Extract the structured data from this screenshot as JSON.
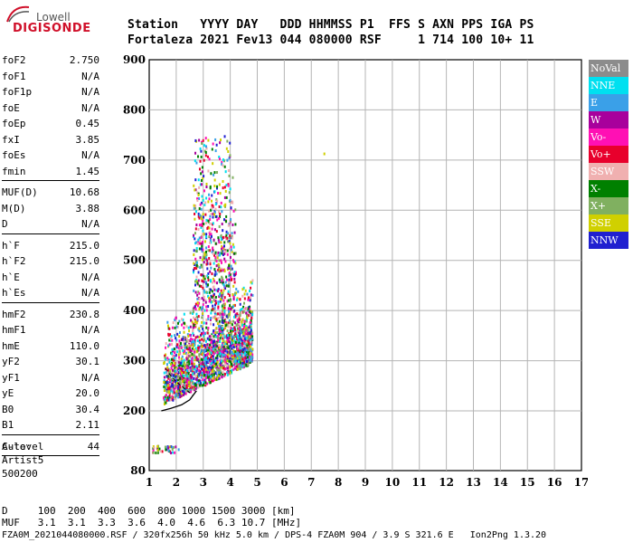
{
  "logo": {
    "line1": "Lowell",
    "line2": "DIGISONDE"
  },
  "header": {
    "labels": "Station   YYYY DAY   DDD HHMMSS P1  FFS S AXN PPS IGA PS",
    "values": "Fortaleza 2021 Fev13 044 080000 RSF     1 714 100 10+ 11"
  },
  "params": {
    "group1": [
      {
        "name": "foF2",
        "value": "2.750"
      },
      {
        "name": "foF1",
        "value": "N/A"
      },
      {
        "name": "foF1p",
        "value": "N/A"
      },
      {
        "name": "foE",
        "value": "N/A"
      },
      {
        "name": "foEp",
        "value": "0.45"
      },
      {
        "name": "fxI",
        "value": "3.85"
      },
      {
        "name": "foEs",
        "value": "N/A"
      },
      {
        "name": "fmin",
        "value": "1.45"
      }
    ],
    "group2": [
      {
        "name": "MUF(D)",
        "value": "10.68"
      },
      {
        "name": "M(D)",
        "value": "3.88"
      },
      {
        "name": "D",
        "value": "N/A"
      }
    ],
    "group3": [
      {
        "name": "h`F",
        "value": "215.0"
      },
      {
        "name": "h`F2",
        "value": "215.0"
      },
      {
        "name": "h`E",
        "value": "N/A"
      },
      {
        "name": "h`Es",
        "value": "N/A"
      }
    ],
    "group4": [
      {
        "name": "hmF2",
        "value": "230.8"
      },
      {
        "name": "hmF1",
        "value": "N/A"
      },
      {
        "name": "hmE",
        "value": "110.0"
      },
      {
        "name": "yF2",
        "value": "30.1"
      },
      {
        "name": "yF1",
        "value": "N/A"
      },
      {
        "name": "yE",
        "value": "20.0"
      },
      {
        "name": "B0",
        "value": "30.4"
      },
      {
        "name": "B1",
        "value": "2.11"
      }
    ],
    "clevel": {
      "name": "C-level",
      "value": "44"
    }
  },
  "auto": {
    "line1": "Auto:",
    "line2": "Artist5",
    "line3": "500200"
  },
  "legend": [
    {
      "label": "NoVal",
      "color": "#8c8c8c"
    },
    {
      "label": "NNE",
      "color": "#00e0f0"
    },
    {
      "label": "E",
      "color": "#3aa0e8"
    },
    {
      "label": "W",
      "color": "#a8009c"
    },
    {
      "label": "Vo-",
      "color": "#ff10b4"
    },
    {
      "label": "Vo+",
      "color": "#e8002c"
    },
    {
      "label": "SSW",
      "color": "#f0b0b0"
    },
    {
      "label": "X-",
      "color": "#008000"
    },
    {
      "label": "X+",
      "color": "#80b060"
    },
    {
      "label": "SSE",
      "color": "#d0d000"
    },
    {
      "label": "NNW",
      "color": "#2020d0"
    }
  ],
  "bottom": {
    "d_line": "D     100  200  400  600  800 1000 1500 3000 [km]",
    "muf_line": "MUF   3.1  3.1  3.3  3.6  4.0  4.6  6.3 10.7 [MHz]",
    "footer": "FZA0M_2021044080000.RSF / 320fx256h 50 kHz 5.0 km / DPS-4 FZA0M 904 / 3.9 S 321.6 E   Ion2Png 1.3.20"
  },
  "chart_data": {
    "type": "scatter",
    "x_ticks": [
      "1",
      "2",
      "3",
      "4",
      "5",
      "6",
      "7",
      "8",
      "9",
      "10",
      "11",
      "12",
      "13",
      "14",
      "15",
      "16",
      "17"
    ],
    "y_ticks": [
      "80",
      "200",
      "300",
      "400",
      "500",
      "600",
      "700",
      "800",
      "900"
    ],
    "xlim": [
      1,
      17
    ],
    "ylim": [
      80,
      900
    ],
    "grid": true,
    "legend_position": "right",
    "trace_points": [
      [
        1.45,
        200
      ],
      [
        1.8,
        205
      ],
      [
        2.2,
        212
      ],
      [
        2.5,
        222
      ],
      [
        2.75,
        240
      ]
    ],
    "trace_upper": [
      [
        1.6,
        285
      ],
      [
        1.8,
        270
      ],
      [
        2.0,
        258
      ],
      [
        2.3,
        245
      ],
      [
        2.6,
        232
      ]
    ]
  }
}
